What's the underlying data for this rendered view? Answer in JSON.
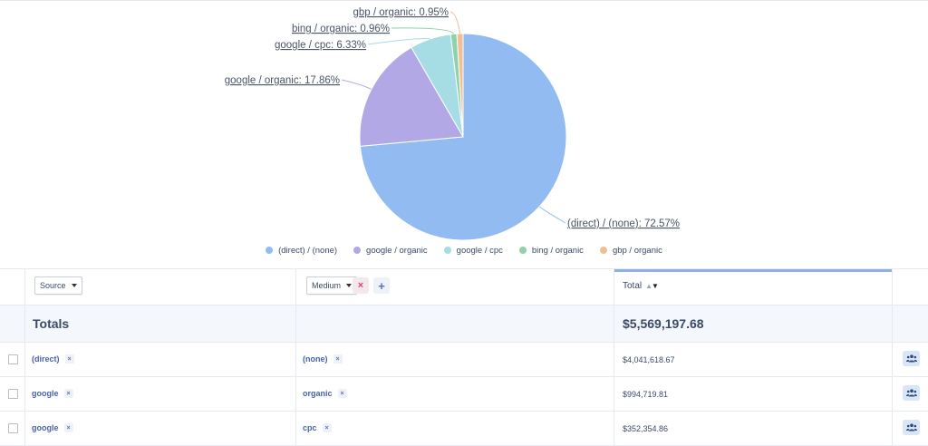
{
  "chart_data": {
    "type": "pie",
    "labels": [
      "(direct) / (none)",
      "google / organic",
      "google / cpc",
      "bing / organic",
      "gbp / organic"
    ],
    "values": [
      72.57,
      17.86,
      6.33,
      0.96,
      0.95
    ],
    "slice_labels": [
      "(direct) / (none): 72.57%",
      "google / organic: 17.86%",
      "google / cpc: 6.33%",
      "bing / organic: 0.96%",
      "gbp / organic: 0.95%"
    ],
    "colors": [
      "#92bbf2",
      "#b3a8e6",
      "#a6dce3",
      "#8fd1a9",
      "#f2bf94"
    ],
    "legend_position": "bottom"
  },
  "legend": [
    "(direct) / (none)",
    "google / organic",
    "google / cpc",
    "bing / organic",
    "gbp / organic"
  ],
  "header": {
    "source_label": "Source",
    "medium_label": "Medium",
    "remove_symbol": "×",
    "add_symbol": "+",
    "total_label": "Total"
  },
  "totals": {
    "label": "Totals",
    "value": "$5,569,197.68"
  },
  "rows": [
    {
      "source": "(direct)",
      "medium": "(none)",
      "total": "$4,041,618.67"
    },
    {
      "source": "google",
      "medium": "organic",
      "total": "$994,719.81"
    },
    {
      "source": "google",
      "medium": "cpc",
      "total": "$352,354.86"
    }
  ],
  "tag_remove_symbol": "×",
  "icons": {
    "row_action": "users-icon",
    "sort": "sort-icon"
  }
}
